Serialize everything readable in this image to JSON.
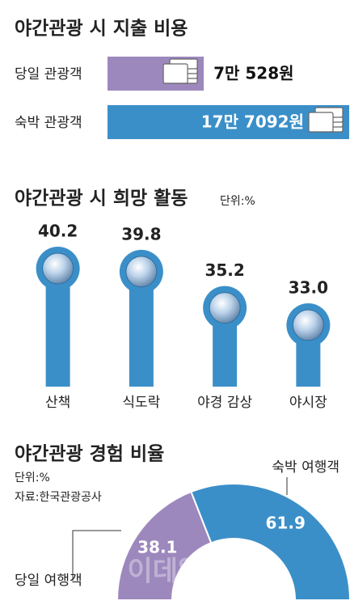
{
  "chart_data": [
    {
      "type": "hbar",
      "title": "야간관광 시 지출 비용",
      "categories": [
        "당일 관광객",
        "숙박 관광객"
      ],
      "values": [
        70528,
        177092
      ],
      "value_labels": [
        "7만 528원",
        "17만 7092원"
      ],
      "colors": [
        "#9d88bd",
        "#3b8fc8"
      ]
    },
    {
      "type": "lollipop",
      "title": "야간관광 시 희망 활동",
      "subtitle": "단위:%",
      "categories": [
        "산책",
        "식도락",
        "야경 감상",
        "야시장"
      ],
      "values": [
        40.2,
        39.8,
        35.2,
        33.0
      ],
      "value_labels": [
        "40.2",
        "39.8",
        "35.2",
        "33.0"
      ],
      "color": "#3b8fc8"
    },
    {
      "type": "half-donut",
      "title": "야간관광 경험 비율",
      "subtitle": "단위:%",
      "source": "자료:한국관광공사",
      "categories": [
        "당일 여행객",
        "숙박 여행객"
      ],
      "values": [
        38.1,
        61.9
      ],
      "colors": [
        "#9d88bd",
        "#3b8fc8"
      ]
    }
  ],
  "watermark": "이데일리"
}
